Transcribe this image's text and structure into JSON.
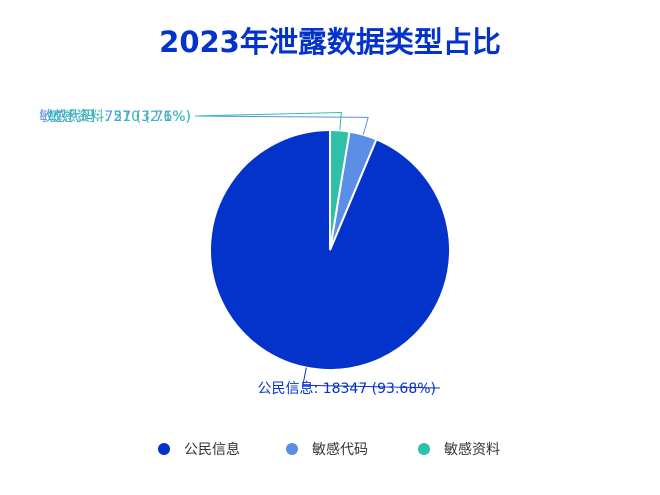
{
  "chart_data": {
    "type": "pie",
    "title": "2023年泄露数据类型占比",
    "slices": [
      {
        "name": "公民信息",
        "value": 18347,
        "percent": "93.68%",
        "color": "#0433cc"
      },
      {
        "name": "敏感代码",
        "value": 727,
        "percent": "3.71%",
        "color": "#5b8ee6"
      },
      {
        "name": "敏感资料",
        "value": 510,
        "percent": "2.6%",
        "color": "#2ec0a9"
      }
    ],
    "labels": [
      "公民信息: 18347 (93.68%)",
      "敏感代码: 727 (3.71%)",
      "敏感资料: 510 (2.6%)"
    ],
    "legend_position": "bottom",
    "title_color": "#0433cc"
  }
}
